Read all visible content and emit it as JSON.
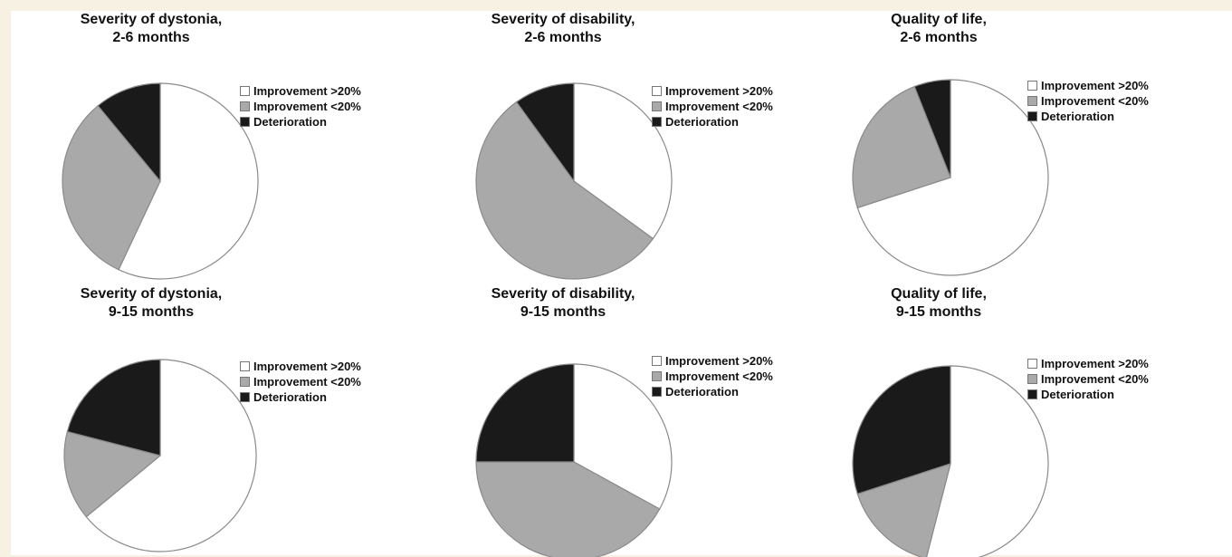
{
  "chart_data": [
    {
      "type": "pie",
      "title_lines": [
        "Severity of dystonia,",
        "2-6 months"
      ],
      "labels": [
        "Improvement >20%",
        "Improvement <20%",
        "Deterioration"
      ],
      "values": [
        57,
        32,
        11
      ],
      "colors": [
        "#ffffff",
        "#a9a9a9",
        "#1a1a1a"
      ],
      "legend": "right"
    },
    {
      "type": "pie",
      "title_lines": [
        "Severity of disability,",
        "2-6 months"
      ],
      "labels": [
        "Improvement >20%",
        "Improvement <20%",
        "Deterioration"
      ],
      "values": [
        35,
        55,
        10
      ],
      "colors": [
        "#ffffff",
        "#a9a9a9",
        "#1a1a1a"
      ],
      "legend": "right"
    },
    {
      "type": "pie",
      "title_lines": [
        "Quality of life,",
        "2-6 months"
      ],
      "labels": [
        "Improvement >20%",
        "Improvement <20%",
        "Deterioration"
      ],
      "values": [
        70,
        24,
        6
      ],
      "colors": [
        "#ffffff",
        "#a9a9a9",
        "#1a1a1a"
      ],
      "legend": "right"
    },
    {
      "type": "pie",
      "title_lines": [
        "Severity of dystonia,",
        "9-15 months"
      ],
      "labels": [
        "Improvement >20%",
        "Improvement <20%",
        "Deterioration"
      ],
      "values": [
        64,
        15,
        21
      ],
      "colors": [
        "#ffffff",
        "#a9a9a9",
        "#1a1a1a"
      ],
      "legend": "right"
    },
    {
      "type": "pie",
      "title_lines": [
        "Severity of disability,",
        "9-15 months"
      ],
      "labels": [
        "Improvement >20%",
        "Improvement <20%",
        "Deterioration"
      ],
      "values": [
        33,
        42,
        25
      ],
      "colors": [
        "#ffffff",
        "#a9a9a9",
        "#1a1a1a"
      ],
      "legend": "right"
    },
    {
      "type": "pie",
      "title_lines": [
        "Quality of life,",
        "9-15 months"
      ],
      "labels": [
        "Improvement >20%",
        "Improvement <20%",
        "Deterioration"
      ],
      "values": [
        54,
        16,
        30
      ],
      "colors": [
        "#ffffff",
        "#a9a9a9",
        "#1a1a1a"
      ],
      "legend": "right"
    }
  ]
}
